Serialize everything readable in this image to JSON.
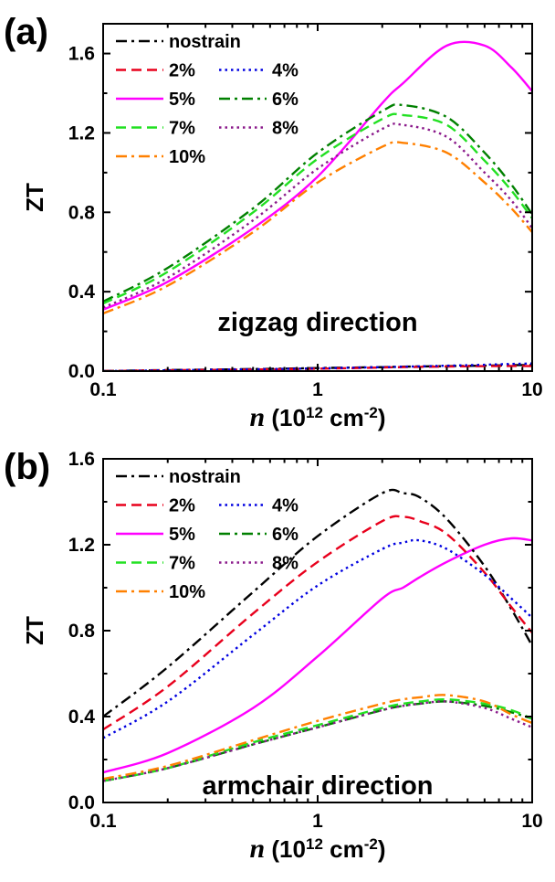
{
  "chart_data": [
    {
      "type": "line",
      "panel_label": "(a)",
      "annotation": "zigzag direction",
      "xlabel_italic": "n",
      "xlabel_rest": " (10",
      "xlabel_exp": "12",
      "xlabel_unit": " cm",
      "xlabel_exp2": "-2",
      "xlabel_close": ")",
      "ylabel": "ZT",
      "xscale": "log",
      "xlim": [
        0.1,
        10
      ],
      "ylim": [
        0.0,
        1.75
      ],
      "yticks": [
        0.0,
        0.4,
        0.8,
        1.2,
        1.6
      ],
      "ytick_labels": [
        "0.0",
        "0.4",
        "0.8",
        "1.2",
        "1.6"
      ],
      "xticks": [
        0.1,
        1,
        10
      ],
      "xtick_labels": [
        "0.1",
        "1",
        "10"
      ],
      "legend_placement": "top-left",
      "x": [
        0.1,
        0.2,
        0.5,
        1,
        2,
        2.5,
        4,
        6,
        8,
        10
      ],
      "series": [
        {
          "name": "nostrain",
          "color": "#000000",
          "dash": "dashdot",
          "values": [
            0.0,
            0.005,
            0.01,
            0.015,
            0.02,
            0.022,
            0.025,
            0.027,
            0.03,
            0.03
          ]
        },
        {
          "name": "2%",
          "color": "#e8001c",
          "dash": "dash",
          "values": [
            0.0,
            0.004,
            0.008,
            0.012,
            0.018,
            0.02,
            0.023,
            0.025,
            0.026,
            0.025
          ]
        },
        {
          "name": "4%",
          "color": "#0000e0",
          "dash": "dot",
          "values": [
            0.0,
            0.004,
            0.009,
            0.014,
            0.02,
            0.022,
            0.027,
            0.032,
            0.036,
            0.038
          ]
        },
        {
          "name": "5%",
          "color": "#ff00ff",
          "dash": "solid",
          "values": [
            0.31,
            0.45,
            0.72,
            0.98,
            1.35,
            1.45,
            1.64,
            1.64,
            1.53,
            1.41
          ]
        },
        {
          "name": "6%",
          "color": "#008000",
          "dash": "dashdot",
          "values": [
            0.35,
            0.52,
            0.82,
            1.1,
            1.31,
            1.34,
            1.28,
            1.1,
            0.94,
            0.79
          ]
        },
        {
          "name": "7%",
          "color": "#22e022",
          "dash": "dash",
          "values": [
            0.34,
            0.5,
            0.8,
            1.07,
            1.27,
            1.29,
            1.24,
            1.06,
            0.91,
            0.77
          ]
        },
        {
          "name": "8%",
          "color": "#8b1a8b",
          "dash": "dot",
          "values": [
            0.32,
            0.47,
            0.76,
            1.02,
            1.22,
            1.24,
            1.18,
            1.0,
            0.86,
            0.72
          ]
        },
        {
          "name": "10%",
          "color": "#ff8000",
          "dash": "dashdot",
          "values": [
            0.29,
            0.43,
            0.7,
            0.95,
            1.13,
            1.15,
            1.1,
            0.95,
            0.82,
            0.7
          ]
        }
      ]
    },
    {
      "type": "line",
      "panel_label": "(b)",
      "annotation": "armchair direction",
      "xlabel_italic": "n",
      "xlabel_rest": " (10",
      "xlabel_exp": "12",
      "xlabel_unit": " cm",
      "xlabel_exp2": "-2",
      "xlabel_close": ")",
      "ylabel": "ZT",
      "xscale": "log",
      "xlim": [
        0.1,
        10
      ],
      "ylim": [
        0.0,
        1.6
      ],
      "yticks": [
        0.0,
        0.4,
        0.8,
        1.2,
        1.6
      ],
      "ytick_labels": [
        "0.0",
        "0.4",
        "0.8",
        "1.2",
        "1.6"
      ],
      "xticks": [
        0.1,
        1,
        10
      ],
      "xtick_labels": [
        "0.1",
        "1",
        "10"
      ],
      "legend_placement": "top-left",
      "x": [
        0.1,
        0.2,
        0.5,
        1,
        2,
        2.5,
        3,
        4,
        6,
        8,
        10
      ],
      "series": [
        {
          "name": "nostrain",
          "color": "#000000",
          "dash": "dashdot",
          "values": [
            0.4,
            0.63,
            0.98,
            1.24,
            1.44,
            1.44,
            1.42,
            1.32,
            1.1,
            0.9,
            0.73
          ]
        },
        {
          "name": "2%",
          "color": "#e8001c",
          "dash": "dash",
          "values": [
            0.34,
            0.54,
            0.88,
            1.12,
            1.31,
            1.33,
            1.31,
            1.25,
            1.07,
            0.91,
            0.79
          ]
        },
        {
          "name": "4%",
          "color": "#0000e0",
          "dash": "dot",
          "values": [
            0.3,
            0.47,
            0.78,
            1.01,
            1.18,
            1.21,
            1.22,
            1.18,
            1.06,
            0.95,
            0.86
          ]
        },
        {
          "name": "5%",
          "color": "#ff00ff",
          "dash": "solid",
          "values": [
            0.14,
            0.23,
            0.44,
            0.68,
            0.95,
            1.0,
            1.05,
            1.12,
            1.2,
            1.23,
            1.22
          ]
        },
        {
          "name": "6%",
          "color": "#008000",
          "dash": "dashdot",
          "values": [
            0.1,
            0.16,
            0.27,
            0.35,
            0.43,
            0.45,
            0.46,
            0.47,
            0.45,
            0.42,
            0.39
          ]
        },
        {
          "name": "7%",
          "color": "#22e022",
          "dash": "dash",
          "values": [
            0.1,
            0.16,
            0.28,
            0.36,
            0.44,
            0.46,
            0.47,
            0.48,
            0.46,
            0.43,
            0.39
          ]
        },
        {
          "name": "8%",
          "color": "#8b1a8b",
          "dash": "dot",
          "values": [
            0.1,
            0.16,
            0.27,
            0.35,
            0.43,
            0.45,
            0.46,
            0.47,
            0.44,
            0.39,
            0.35
          ]
        },
        {
          "name": "10%",
          "color": "#ff8000",
          "dash": "dashdot",
          "values": [
            0.11,
            0.17,
            0.29,
            0.38,
            0.46,
            0.48,
            0.49,
            0.5,
            0.47,
            0.41,
            0.37
          ]
        }
      ]
    }
  ]
}
